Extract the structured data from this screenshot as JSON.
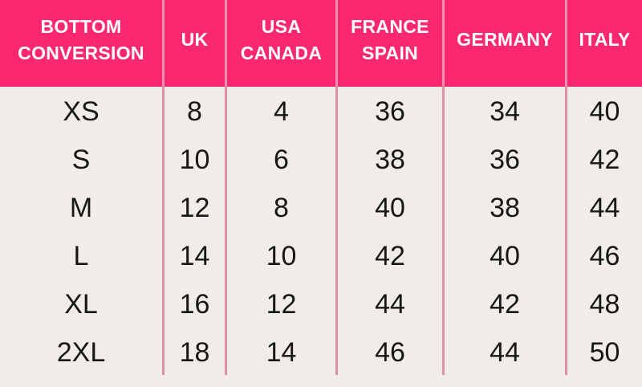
{
  "colors": {
    "header_bg": "#FB2871",
    "header_divider": "#F193AE",
    "body_divider": "#E090A3",
    "body_bg": "#F0ECE7",
    "header_text": "#FFFFFF",
    "body_text": "#171717"
  },
  "header": {
    "columns": [
      [
        "BOTTOM",
        "CONVERSION"
      ],
      [
        "UK"
      ],
      [
        "USA",
        "CANADA"
      ],
      [
        "FRANCE",
        "SPAIN"
      ],
      [
        "GERMANY"
      ],
      [
        "ITALY"
      ]
    ]
  },
  "chart_data": {
    "type": "table",
    "title": "BOTTOM CONVERSION",
    "columns": [
      "BOTTOM CONVERSION",
      "UK",
      "USA CANADA",
      "FRANCE SPAIN",
      "GERMANY",
      "ITALY"
    ],
    "rows": [
      [
        "XS",
        "8",
        "4",
        "36",
        "34",
        "40"
      ],
      [
        "S",
        "10",
        "6",
        "38",
        "36",
        "42"
      ],
      [
        "M",
        "12",
        "8",
        "40",
        "38",
        "44"
      ],
      [
        "L",
        "14",
        "10",
        "42",
        "40",
        "46"
      ],
      [
        "XL",
        "16",
        "12",
        "44",
        "42",
        "48"
      ],
      [
        "2XL",
        "18",
        "14",
        "46",
        "44",
        "50"
      ]
    ]
  }
}
